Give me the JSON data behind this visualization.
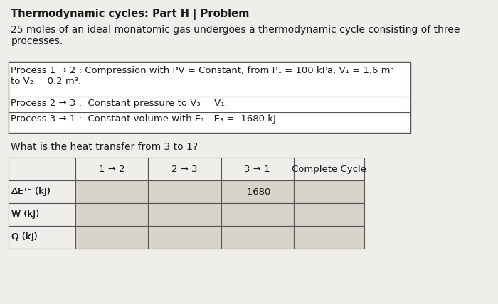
{
  "title": "Thermodynamic cycles: Part H | Problem",
  "intro_text": "25 moles of an ideal monatomic gas undergoes a thermodynamic cycle consisting of three\nprocesses.",
  "process_boxes": [
    "Process 1 → 2 : Compression with PV = Constant, from P₁ = 100 kPa, V₁ = 1.6 m³\nto V₂ = 0.2 m³.",
    "Process 2 → 3 :  Constant pressure to V₃ = V₁.",
    "Process 3 → 1 :  Constant volume with E₁ - E₃ = -1680 kJ."
  ],
  "question": "What is the heat transfer from 3 to 1?",
  "table_headers": [
    "",
    "1 → 2",
    "2 → 3",
    "3 → 1",
    "Complete Cycle"
  ],
  "table_rows": [
    [
      "ΔEᵀᴴ (kJ)",
      "",
      "",
      "-1680",
      ""
    ],
    [
      "W (kJ)",
      "",
      "",
      "",
      ""
    ],
    [
      "Q (kJ)",
      "",
      "",
      "",
      ""
    ]
  ],
  "bg_color": "#f0eeeb",
  "box_bg": "#f0eeeb",
  "table_bg": "#d8d4cc",
  "text_color": "#1a1a1a",
  "border_color": "#555555"
}
